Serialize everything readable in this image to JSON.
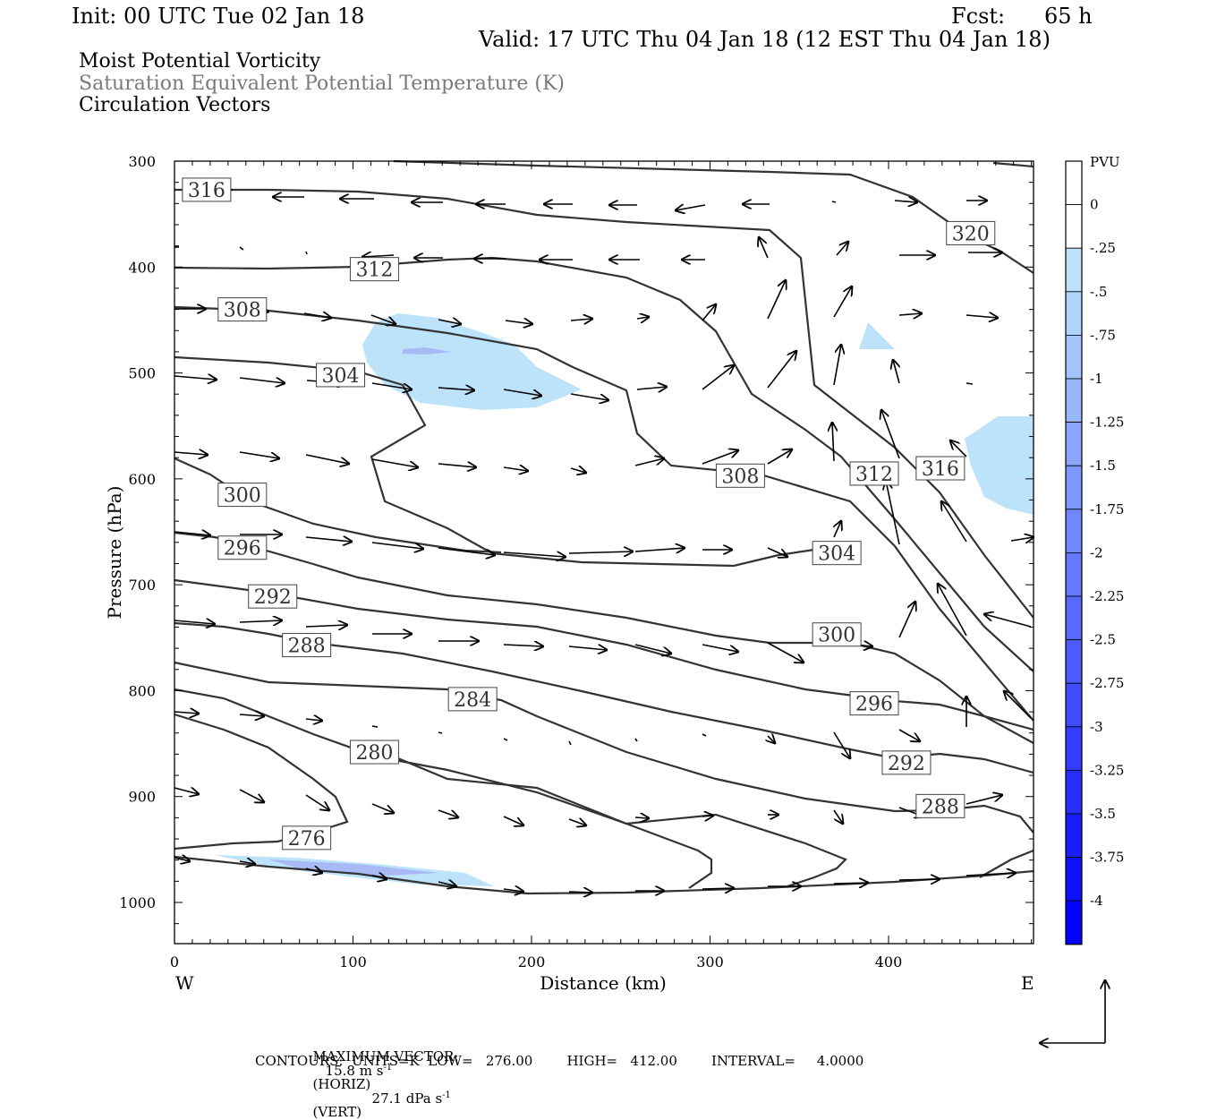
{
  "header": {
    "init": "Init: 00 UTC Tue 02 Jan 18",
    "fcst_label": "Fcst:",
    "fcst_value": "65 h",
    "valid": "Valid: 17 UTC Thu 04 Jan 18 (12 EST Thu 04 Jan 18)"
  },
  "fields": {
    "f1": "Moist Potential Vorticity",
    "f2": "Saturation Equivalent Potential Temperature (K)",
    "f3": "Circulation Vectors"
  },
  "colors": {
    "contour": "#333333",
    "shade_light": "#bde3fb",
    "shade_mid": "#a9b9f5",
    "axis": "#000000"
  },
  "chart_data": {
    "type": "contour-cross-section",
    "xlabel": "Distance (km)",
    "ylabel": "Pressure (hPa)",
    "x_ticks": [
      "0",
      "100",
      "200",
      "300",
      "400"
    ],
    "y_ticks": [
      "300",
      "400",
      "500",
      "600",
      "700",
      "800",
      "900",
      "1000"
    ],
    "xlim": [
      0,
      485
    ],
    "ylim": [
      1040,
      300
    ],
    "left_end": "W",
    "right_end": "E",
    "contour_labels": [
      {
        "text": "316",
        "x": 18,
        "p": 327
      },
      {
        "text": "320",
        "x": 446,
        "p": 368
      },
      {
        "text": "312",
        "x": 112,
        "p": 402
      },
      {
        "text": "308",
        "x": 38,
        "p": 440
      },
      {
        "text": "304",
        "x": 93,
        "p": 502
      },
      {
        "text": "308",
        "x": 317,
        "p": 597
      },
      {
        "text": "312",
        "x": 392,
        "p": 595
      },
      {
        "text": "316",
        "x": 429,
        "p": 590
      },
      {
        "text": "300",
        "x": 38,
        "p": 615
      },
      {
        "text": "296",
        "x": 38,
        "p": 665
      },
      {
        "text": "304",
        "x": 371,
        "p": 670
      },
      {
        "text": "292",
        "x": 55,
        "p": 711
      },
      {
        "text": "288",
        "x": 74,
        "p": 757
      },
      {
        "text": "300",
        "x": 371,
        "p": 747
      },
      {
        "text": "284",
        "x": 167,
        "p": 808
      },
      {
        "text": "296",
        "x": 392,
        "p": 812
      },
      {
        "text": "280",
        "x": 112,
        "p": 858
      },
      {
        "text": "292",
        "x": 410,
        "p": 868
      },
      {
        "text": "288",
        "x": 429,
        "p": 909
      },
      {
        "text": "276",
        "x": 74,
        "p": 939
      }
    ],
    "colorbar": {
      "title": "PVU",
      "labels": [
        "0",
        "-.25",
        "-.5",
        "-.75",
        "-1",
        "-1.25",
        "-1.5",
        "-1.75",
        "-2",
        "-2.25",
        "-2.5",
        "-2.75",
        "-3",
        "-3.25",
        "-3.5",
        "-3.75",
        "-4"
      ]
    }
  },
  "footer": {
    "max_vector_label": "MAXIMUM VECTOR:",
    "max_vector_horiz": "15.8 m s",
    "horiz_exp": "-1",
    "horiz_tag": "(HORIZ)",
    "max_vector_vert": "27.1 dPa s",
    "vert_exp": "-1",
    "vert_tag": "(VERT)",
    "contours": "CONTOURS:  UNITS=K  LOW=   276.00        HIGH=   412.00        INTERVAL=     4.0000"
  }
}
